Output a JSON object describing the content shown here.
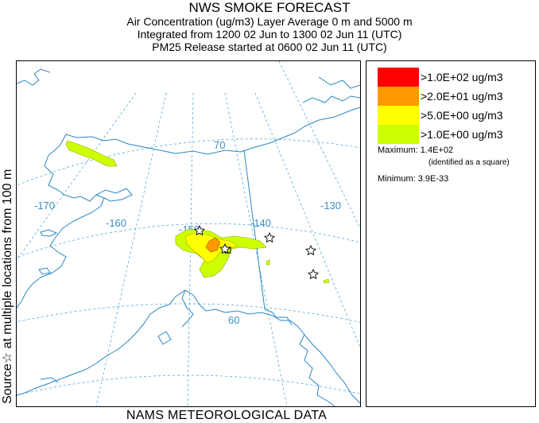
{
  "title": {
    "line1": "NWS SMOKE FORECAST",
    "line2": "Air Concentration (ug/m3) Layer Average    0 m and  5000 m",
    "line3": "Integrated from 1200 02 Jun to 1300 02 Jun 11 (UTC)",
    "line4": "PM25 Release started at 0600 02 Jun 11 (UTC)"
  },
  "side_label": "Source☆ at multiple locations   from  100 m",
  "bottom_label": "NAMS METEOROLOGICAL DATA",
  "map": {
    "grid_labels": {
      "lon_170": "-170",
      "lon_160": "-160",
      "lon_150": "-150",
      "lon_140": "-140",
      "lon_130": "-130",
      "lat_70": "70",
      "lat_60": "60"
    },
    "colors": {
      "coast": "#2a86c2",
      "grid": "#5aa7d6",
      "level4": "#ff0000",
      "level3": "#ff9900",
      "level2": "#ffff00",
      "level1": "#ccff00"
    },
    "source_marker": "star-icon"
  },
  "legend": {
    "levels": [
      {
        "label": ">1.0E+02 ug/m3",
        "color": "#ff0000"
      },
      {
        "label": ">2.0E+01 ug/m3",
        "color": "#ff9900"
      },
      {
        "label": ">5.0E+00 ug/m3",
        "color": "#ffff00"
      },
      {
        "label": ">1.0E+00 ug/m3",
        "color": "#ccff00"
      }
    ],
    "maximum": "Maximum: 1.4E+02",
    "maximum_note": "(identified as a square)",
    "minimum": "Minimum: 3.9E-33"
  }
}
